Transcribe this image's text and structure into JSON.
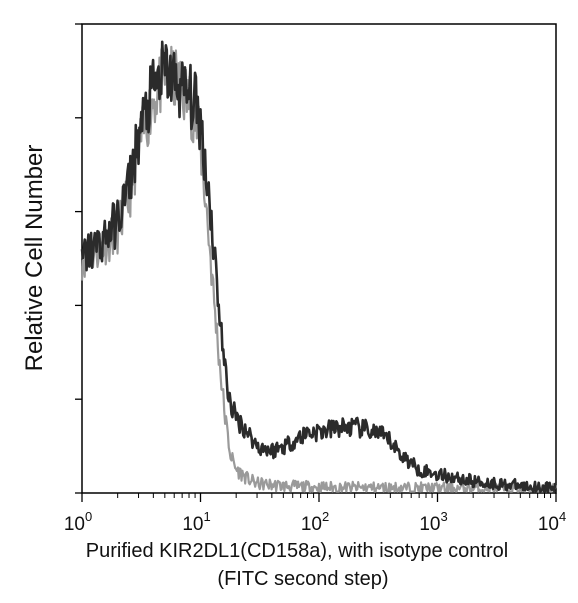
{
  "chart_data": {
    "type": "line",
    "title": "",
    "xlabel_line1": "Purified KIR2DL1(CD158a), with isotype control",
    "xlabel_line2": "(FITC second step)",
    "ylabel": "Relative Cell Number",
    "x_scale": "log",
    "xlim": [
      1,
      10000
    ],
    "ylim": [
      0,
      100
    ],
    "grid": false,
    "legend": "none",
    "x_ticks": [
      {
        "base": "10",
        "exp": "0",
        "value": 1
      },
      {
        "base": "10",
        "exp": "1",
        "value": 10
      },
      {
        "base": "10",
        "exp": "2",
        "value": 100
      },
      {
        "base": "10",
        "exp": "3",
        "value": 1000
      },
      {
        "base": "10",
        "exp": "4",
        "value": 10000
      }
    ],
    "y_ticks": [
      0,
      20,
      40,
      60,
      80,
      100
    ],
    "series": [
      {
        "role": "isotype control",
        "color": "#9a9a9a",
        "points": [
          [
            1,
            50
          ],
          [
            1.5,
            53
          ],
          [
            2,
            56
          ],
          [
            2.5,
            63
          ],
          [
            3,
            74
          ],
          [
            4,
            84
          ],
          [
            5,
            89
          ],
          [
            6,
            88
          ],
          [
            7,
            86
          ],
          [
            8,
            84
          ],
          [
            9,
            80
          ],
          [
            10,
            74
          ],
          [
            11,
            63
          ],
          [
            12,
            52
          ],
          [
            13,
            41
          ],
          [
            14,
            32
          ],
          [
            15,
            24
          ],
          [
            16,
            17
          ],
          [
            17,
            12
          ],
          [
            18,
            8
          ],
          [
            20,
            5
          ],
          [
            25,
            3
          ],
          [
            30,
            2
          ],
          [
            50,
            1.5
          ],
          [
            100,
            1.2
          ],
          [
            1000,
            1
          ],
          [
            10000,
            0.8
          ]
        ]
      },
      {
        "role": "KIR2DL1",
        "color": "#2b2b2b",
        "points": [
          [
            1,
            50
          ],
          [
            1.5,
            54
          ],
          [
            2,
            58
          ],
          [
            2.5,
            66
          ],
          [
            3,
            76
          ],
          [
            4,
            86
          ],
          [
            5,
            90
          ],
          [
            6,
            88
          ],
          [
            7,
            86
          ],
          [
            8,
            85
          ],
          [
            9,
            83
          ],
          [
            10,
            79
          ],
          [
            11,
            70
          ],
          [
            12,
            62
          ],
          [
            13,
            52
          ],
          [
            14,
            43
          ],
          [
            15,
            34
          ],
          [
            16,
            27
          ],
          [
            17,
            22
          ],
          [
            18,
            19
          ],
          [
            20,
            16
          ],
          [
            25,
            13
          ],
          [
            30,
            10
          ],
          [
            40,
            9
          ],
          [
            50,
            10
          ],
          [
            60,
            11
          ],
          [
            70,
            12
          ],
          [
            80,
            13
          ],
          [
            100,
            13
          ],
          [
            150,
            14
          ],
          [
            200,
            14
          ],
          [
            300,
            13
          ],
          [
            400,
            11
          ],
          [
            500,
            8
          ],
          [
            700,
            5
          ],
          [
            1000,
            4
          ],
          [
            2000,
            2.5
          ],
          [
            5000,
            1.5
          ],
          [
            10000,
            1
          ]
        ]
      }
    ]
  }
}
